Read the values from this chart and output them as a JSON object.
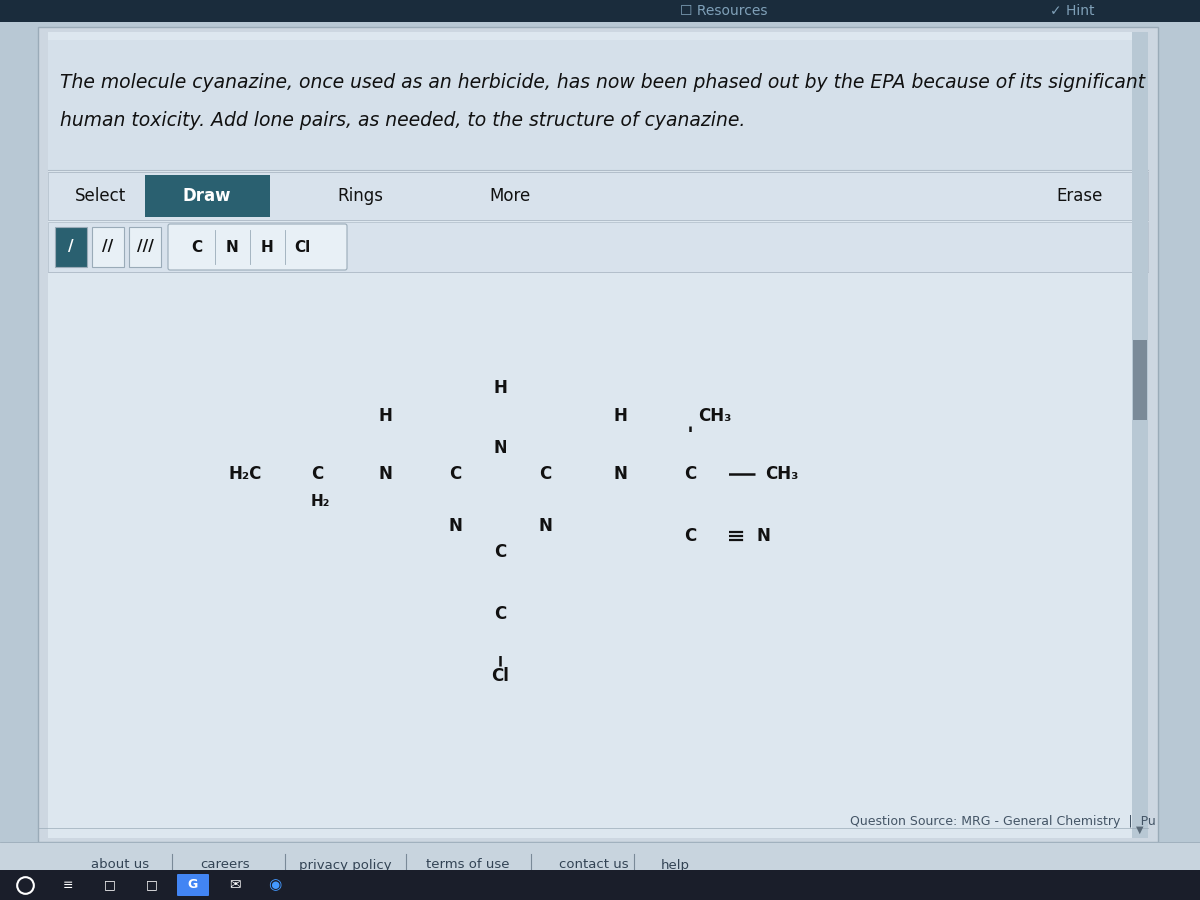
{
  "bg_overall": "#b8c8d4",
  "bg_content": "#d0dce8",
  "bg_white_area": "#e8f0f6",
  "bg_question_area": "#dce6f0",
  "nav_color": "#1a3050",
  "draw_btn_color": "#2a6070",
  "draw_btn_text": "#ffffff",
  "text_dark": "#111111",
  "text_mid": "#334455",
  "mol_color": "#111111",
  "mol_lw": 1.8,
  "mol_fs": 12,
  "question_line1": "The molecule cyanazine, once used as an herbicide, has now been phased out by the EPA because of its significant",
  "question_line2": "human toxicity. Add lone pairs, as needed, to the structure of cyanazine.",
  "toolbar_items": [
    "Select",
    "Draw",
    "Rings",
    "More",
    "Erase"
  ],
  "atom_buttons": [
    "C",
    "N",
    "H",
    "Cl"
  ],
  "footer_links": [
    "about us",
    "careers",
    "privacy policy",
    "terms of use",
    "contact us",
    "help"
  ],
  "question_source": "Question Source: MRG - General Chemistry  |  Pu",
  "resources_text": "Resources",
  "hint_text": "Hint"
}
